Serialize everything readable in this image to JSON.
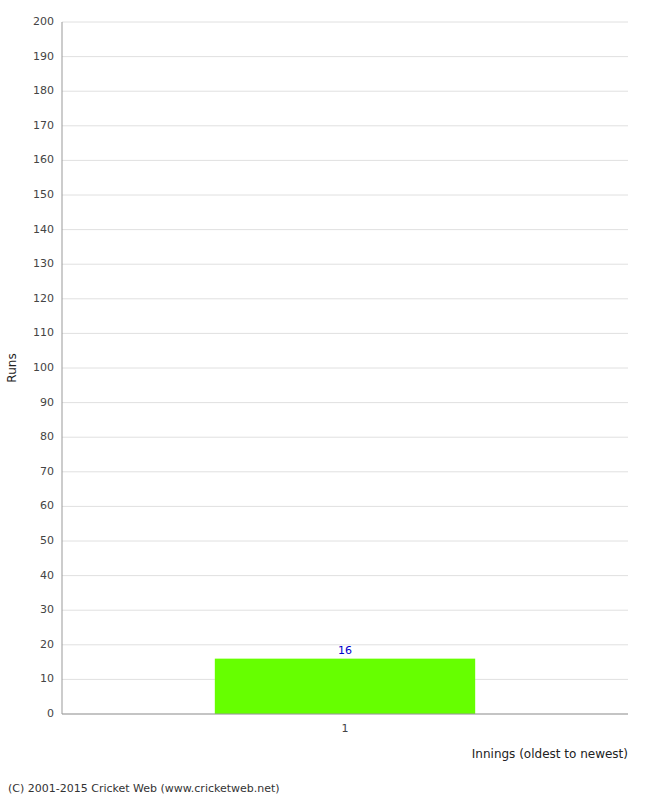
{
  "chart_data": {
    "type": "bar",
    "categories": [
      "1"
    ],
    "values": [
      16
    ],
    "color": "#66ff00",
    "y_label": "Runs",
    "x_label": "Innings (oldest to newest)",
    "annotations": [
      "(C) 2001-2015 Cricket Web (www.cricketweb.net)"
    ],
    "ylim": [
      0,
      200
    ],
    "yticks": [
      0,
      10,
      20,
      30,
      40,
      50,
      60,
      70,
      80,
      90,
      100,
      110,
      120,
      130,
      140,
      150,
      160,
      170,
      180,
      190,
      200
    ],
    "grid": true,
    "data_labels": true
  }
}
